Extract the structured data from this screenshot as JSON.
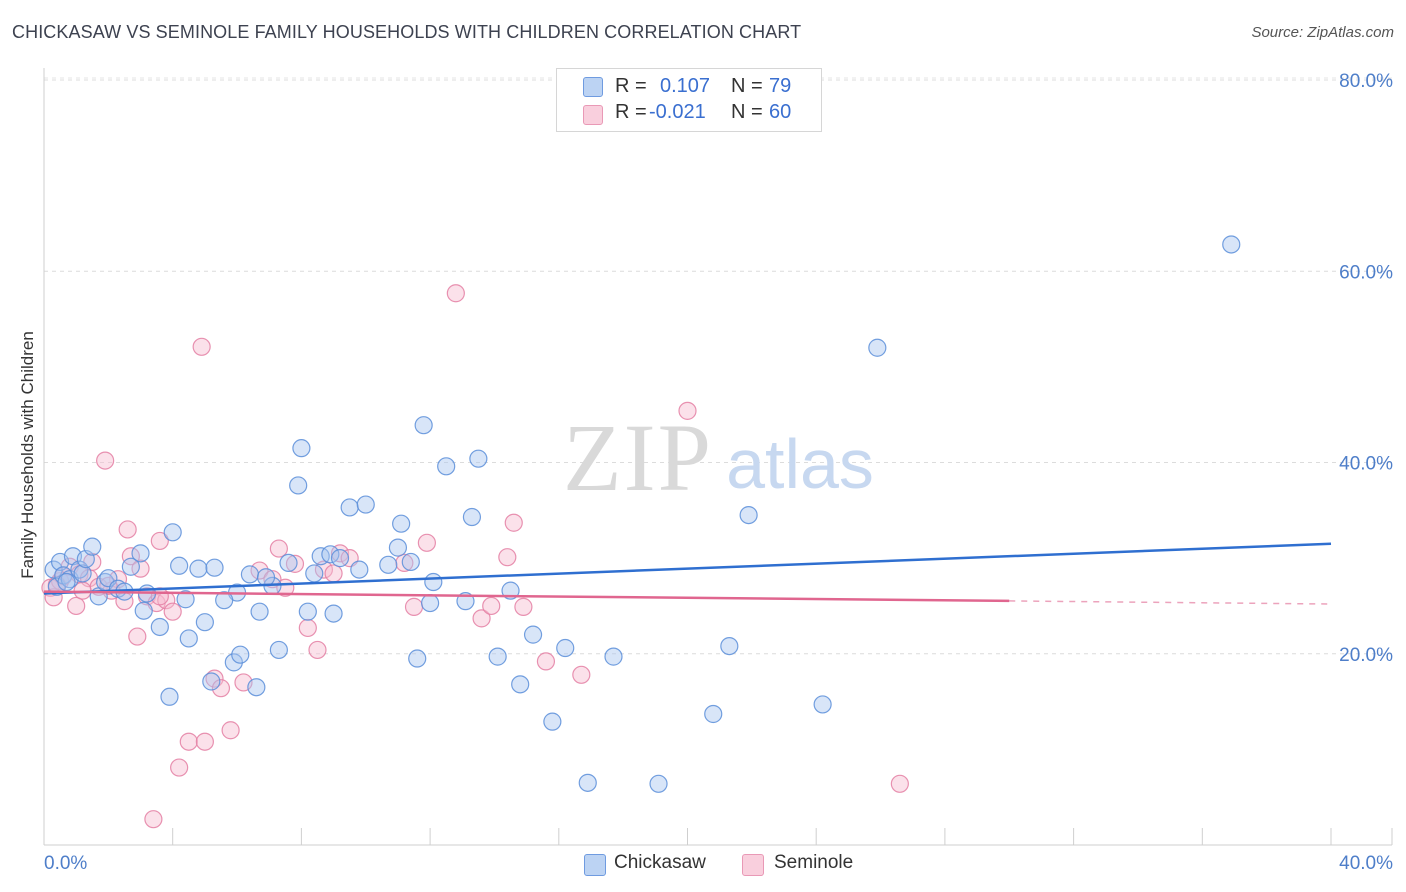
{
  "header": {
    "title": "CHICKASAW VS SEMINOLE FAMILY HOUSEHOLDS WITH CHILDREN CORRELATION CHART",
    "source": "Source: ZipAtlas.com"
  },
  "watermark": {
    "zip": "ZIP",
    "atlas": "atlas"
  },
  "legend": {
    "rows": [
      {
        "r_label": "R =",
        "r_value": "0.107",
        "n_label": "N =",
        "n_value": "79"
      },
      {
        "r_label": "R =",
        "r_value": "-0.021",
        "n_label": "N =",
        "n_value": "60"
      }
    ]
  },
  "colors": {
    "chickasaw_fill": "#a9c6f0",
    "chickasaw_stroke": "#5b8ed9",
    "chickasaw_line": "#2f6fd0",
    "seminole_fill": "#f7bcd0",
    "seminole_stroke": "#e47fa3",
    "seminole_line": "#e0668f",
    "tick_text": "#4e7ec9"
  },
  "chart_data": {
    "type": "scatter",
    "title": "CHICKASAW VS SEMINOLE FAMILY HOUSEHOLDS WITH CHILDREN CORRELATION CHART",
    "xlabel": "",
    "ylabel": "Family Households with Children",
    "xlim": [
      0,
      40
    ],
    "ylim": [
      0,
      80
    ],
    "x_tick_labels": [
      "0.0%",
      "40.0%"
    ],
    "y_ticks": [
      20,
      40,
      60,
      80
    ],
    "y_tick_labels": [
      "20.0%",
      "40.0%",
      "60.0%",
      "80.0%"
    ],
    "legend_position": "bottom-center",
    "series": [
      {
        "name": "Chickasaw",
        "r": 0.107,
        "n": 79,
        "trend": {
          "x": [
            0,
            40
          ],
          "y": [
            26.3,
            31.5
          ],
          "dashed_from": null
        },
        "points": [
          [
            0.3,
            28.8
          ],
          [
            0.4,
            27.0
          ],
          [
            0.5,
            29.6
          ],
          [
            0.6,
            28.2
          ],
          [
            0.8,
            27.8
          ],
          [
            0.9,
            30.2
          ],
          [
            1.1,
            28.8
          ],
          [
            1.2,
            28.4
          ],
          [
            1.3,
            29.9
          ],
          [
            1.5,
            31.2
          ],
          [
            1.7,
            26.0
          ],
          [
            1.9,
            27.5
          ],
          [
            2.0,
            27.9
          ],
          [
            2.3,
            26.8
          ],
          [
            2.5,
            26.5
          ],
          [
            2.7,
            29.1
          ],
          [
            3.0,
            30.5
          ],
          [
            3.1,
            24.5
          ],
          [
            3.6,
            22.8
          ],
          [
            3.9,
            15.5
          ],
          [
            4.0,
            32.7
          ],
          [
            4.2,
            29.2
          ],
          [
            4.4,
            25.7
          ],
          [
            4.5,
            21.6
          ],
          [
            4.8,
            28.9
          ],
          [
            5.0,
            23.3
          ],
          [
            5.2,
            17.1
          ],
          [
            5.3,
            29.0
          ],
          [
            5.9,
            19.1
          ],
          [
            6.0,
            26.4
          ],
          [
            6.1,
            19.9
          ],
          [
            6.4,
            28.3
          ],
          [
            6.6,
            16.5
          ],
          [
            6.7,
            24.4
          ],
          [
            7.1,
            27.1
          ],
          [
            7.3,
            20.4
          ],
          [
            7.6,
            29.5
          ],
          [
            7.9,
            37.6
          ],
          [
            8.0,
            41.5
          ],
          [
            8.2,
            24.4
          ],
          [
            8.4,
            28.4
          ],
          [
            8.6,
            30.2
          ],
          [
            8.9,
            30.4
          ],
          [
            9.0,
            24.2
          ],
          [
            9.2,
            30.0
          ],
          [
            9.5,
            35.3
          ],
          [
            9.8,
            28.8
          ],
          [
            10.0,
            35.6
          ],
          [
            10.7,
            29.3
          ],
          [
            11.0,
            31.1
          ],
          [
            11.1,
            33.6
          ],
          [
            11.4,
            29.6
          ],
          [
            11.6,
            19.5
          ],
          [
            11.8,
            43.9
          ],
          [
            12.0,
            25.3
          ],
          [
            12.1,
            27.5
          ],
          [
            12.5,
            39.6
          ],
          [
            13.1,
            25.5
          ],
          [
            13.3,
            34.3
          ],
          [
            13.5,
            40.4
          ],
          [
            14.1,
            19.7
          ],
          [
            14.5,
            26.6
          ],
          [
            14.8,
            16.8
          ],
          [
            15.2,
            22.0
          ],
          [
            15.8,
            12.9
          ],
          [
            16.2,
            20.6
          ],
          [
            16.9,
            6.5
          ],
          [
            17.7,
            19.7
          ],
          [
            19.1,
            6.4
          ],
          [
            20.8,
            13.7
          ],
          [
            21.3,
            20.8
          ],
          [
            21.9,
            34.5
          ],
          [
            24.2,
            14.7
          ],
          [
            25.9,
            52.0
          ],
          [
            36.9,
            62.8
          ],
          [
            0.7,
            27.5
          ],
          [
            3.2,
            26.3
          ],
          [
            5.6,
            25.6
          ],
          [
            6.9,
            28.0
          ]
        ]
      },
      {
        "name": "Seminole",
        "r": -0.021,
        "n": 60,
        "trend": {
          "x": [
            0,
            40
          ],
          "y": [
            26.5,
            25.2
          ],
          "dashed_from": 30.0
        },
        "points": [
          [
            0.2,
            26.9
          ],
          [
            0.3,
            25.9
          ],
          [
            0.5,
            27.6
          ],
          [
            0.6,
            28.1
          ],
          [
            0.8,
            29.1
          ],
          [
            1.0,
            25.0
          ],
          [
            1.1,
            28.3
          ],
          [
            1.4,
            27.9
          ],
          [
            1.5,
            29.6
          ],
          [
            1.7,
            27.0
          ],
          [
            1.9,
            40.2
          ],
          [
            2.1,
            26.6
          ],
          [
            2.3,
            27.8
          ],
          [
            2.5,
            25.5
          ],
          [
            2.6,
            33.0
          ],
          [
            2.7,
            30.2
          ],
          [
            2.9,
            21.8
          ],
          [
            3.0,
            28.9
          ],
          [
            3.2,
            26.0
          ],
          [
            3.4,
            2.7
          ],
          [
            3.5,
            25.3
          ],
          [
            3.6,
            31.8
          ],
          [
            3.8,
            25.6
          ],
          [
            4.0,
            24.4
          ],
          [
            4.2,
            8.1
          ],
          [
            4.5,
            10.8
          ],
          [
            4.9,
            52.1
          ],
          [
            5.0,
            10.8
          ],
          [
            5.3,
            17.4
          ],
          [
            5.5,
            16.4
          ],
          [
            5.8,
            12.0
          ],
          [
            6.2,
            17.0
          ],
          [
            6.7,
            28.7
          ],
          [
            7.1,
            27.8
          ],
          [
            7.3,
            31.0
          ],
          [
            7.5,
            26.9
          ],
          [
            7.8,
            29.4
          ],
          [
            8.2,
            22.7
          ],
          [
            8.5,
            20.4
          ],
          [
            8.7,
            28.8
          ],
          [
            9.2,
            30.5
          ],
          [
            9.5,
            30.0
          ],
          [
            11.2,
            29.5
          ],
          [
            11.5,
            24.9
          ],
          [
            11.9,
            31.6
          ],
          [
            12.8,
            57.7
          ],
          [
            13.6,
            23.7
          ],
          [
            13.9,
            25.0
          ],
          [
            14.4,
            30.1
          ],
          [
            14.6,
            33.7
          ],
          [
            14.9,
            24.9
          ],
          [
            15.6,
            19.2
          ],
          [
            16.7,
            17.8
          ],
          [
            20.0,
            45.4
          ],
          [
            26.6,
            6.4
          ],
          [
            0.4,
            27.2
          ],
          [
            1.2,
            26.6
          ],
          [
            2.0,
            27.1
          ],
          [
            3.6,
            26.0
          ],
          [
            9.0,
            28.4
          ]
        ]
      }
    ]
  },
  "bottom_legend": {
    "items": [
      "Chickasaw",
      "Seminole"
    ]
  }
}
